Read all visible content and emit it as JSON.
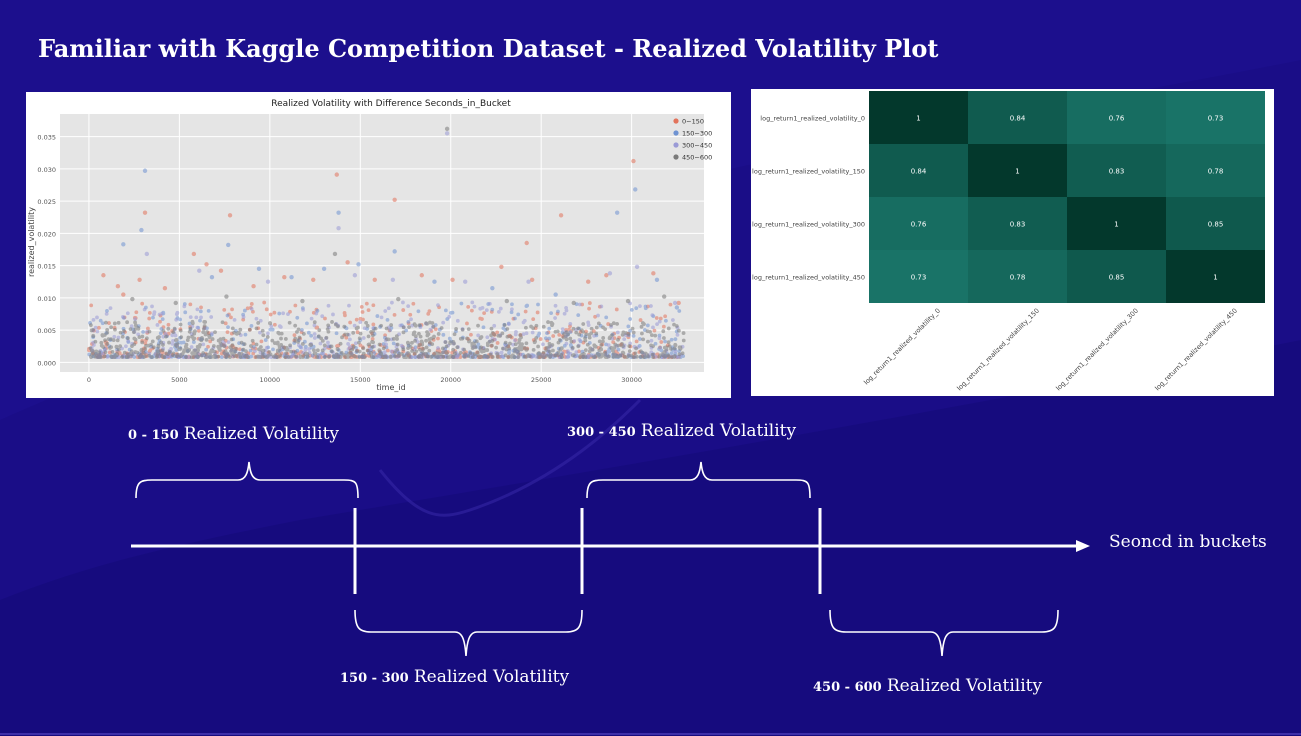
{
  "slide": {
    "title": "Familiar with Kaggle Competition Dataset - Realized Volatility  Plot",
    "timeline_axis_label": "Seoncd in buckets",
    "intervals": [
      {
        "range": "0 - 150",
        "label": "Realized Volatility"
      },
      {
        "range": "150 - 300",
        "label": "Realized Volatility"
      },
      {
        "range": "300 - 450",
        "label": "Realized Volatility"
      },
      {
        "range": "450 - 600",
        "label": "Realized Volatility"
      }
    ]
  },
  "chart_data": [
    {
      "type": "scatter",
      "title": "Realized Volatility with Difference Seconds_in_Bucket",
      "xlabel": "time_id",
      "ylabel": "realized_volatility",
      "xlim": [
        -1600,
        34000
      ],
      "ylim": [
        -0.0015,
        0.0385
      ],
      "xticks": [
        0,
        5000,
        10000,
        15000,
        20000,
        25000,
        30000
      ],
      "xtick_labels": [
        "0",
        "5000",
        "10000",
        "15000",
        "20000",
        "25000",
        "30000"
      ],
      "yticks": [
        0.0,
        0.005,
        0.01,
        0.015,
        0.02,
        0.025,
        0.03,
        0.035
      ],
      "ytick_labels": [
        "0.000",
        "0.005",
        "0.010",
        "0.015",
        "0.020",
        "0.025",
        "0.030",
        "0.035"
      ],
      "grid": true,
      "legend_position": "top-right",
      "series": [
        {
          "name": "0~150",
          "color": "#e2735c",
          "points": [
            [
              800,
              0.0135
            ],
            [
              1600,
              0.0118
            ],
            [
              1900,
              0.0105
            ],
            [
              2800,
              0.0128
            ],
            [
              3100,
              0.0232
            ],
            [
              4200,
              0.0115
            ],
            [
              5800,
              0.0168
            ],
            [
              6500,
              0.0152
            ],
            [
              7300,
              0.0142
            ],
            [
              7800,
              0.0228
            ],
            [
              9100,
              0.0118
            ],
            [
              10800,
              0.0132
            ],
            [
              12400,
              0.0128
            ],
            [
              13700,
              0.0291
            ],
            [
              14300,
              0.0155
            ],
            [
              15800,
              0.0128
            ],
            [
              16900,
              0.0252
            ],
            [
              18400,
              0.0135
            ],
            [
              20100,
              0.0128
            ],
            [
              22800,
              0.0148
            ],
            [
              24200,
              0.0185
            ],
            [
              24500,
              0.0128
            ],
            [
              26100,
              0.0228
            ],
            [
              27600,
              0.0125
            ],
            [
              28600,
              0.0135
            ],
            [
              30100,
              0.0312
            ],
            [
              31200,
              0.0138
            ],
            [
              32600,
              0.0092
            ]
          ]
        },
        {
          "name": "150~300",
          "color": "#6f93d2",
          "points": [
            [
              1900,
              0.0183
            ],
            [
              2900,
              0.0205
            ],
            [
              3100,
              0.0297
            ],
            [
              6800,
              0.0132
            ],
            [
              7700,
              0.0182
            ],
            [
              9400,
              0.0145
            ],
            [
              11200,
              0.0132
            ],
            [
              13000,
              0.0145
            ],
            [
              13800,
              0.0232
            ],
            [
              14900,
              0.0152
            ],
            [
              16900,
              0.0172
            ],
            [
              19100,
              0.0125
            ],
            [
              22300,
              0.0115
            ],
            [
              25800,
              0.0105
            ],
            [
              29200,
              0.0232
            ],
            [
              30200,
              0.0268
            ],
            [
              31400,
              0.0128
            ],
            [
              32500,
              0.0085
            ]
          ]
        },
        {
          "name": "300~450",
          "color": "#9a9ad6",
          "points": [
            [
              3200,
              0.0168
            ],
            [
              6100,
              0.0142
            ],
            [
              9900,
              0.0125
            ],
            [
              13800,
              0.0208
            ],
            [
              14700,
              0.0135
            ],
            [
              16800,
              0.0128
            ],
            [
              19800,
              0.0355
            ],
            [
              20800,
              0.0125
            ],
            [
              24300,
              0.0125
            ],
            [
              28800,
              0.0138
            ],
            [
              30300,
              0.0148
            ],
            [
              32400,
              0.0092
            ]
          ]
        },
        {
          "name": "450~600",
          "color": "#7a7a7a",
          "points": [
            [
              2400,
              0.0098
            ],
            [
              4800,
              0.0092
            ],
            [
              7600,
              0.0102
            ],
            [
              11800,
              0.0095
            ],
            [
              13600,
              0.0168
            ],
            [
              17100,
              0.0098
            ],
            [
              19800,
              0.0362
            ],
            [
              23100,
              0.0095
            ],
            [
              26800,
              0.0092
            ],
            [
              29800,
              0.0095
            ],
            [
              31800,
              0.0102
            ]
          ]
        }
      ]
    },
    {
      "type": "heatmap",
      "x_labels": [
        "log_return1_realized_volatility_0",
        "log_return1_realized_volatility_150",
        "log_return1_realized_volatility_300",
        "log_return1_realized_volatility_450"
      ],
      "y_labels": [
        "log_return1_realized_volatility_0",
        "log_return1_realized_volatility_150",
        "log_return1_realized_volatility_300",
        "log_return1_realized_volatility_450"
      ],
      "values": [
        [
          1,
          0.84,
          0.76,
          0.73
        ],
        [
          0.84,
          1,
          0.83,
          0.78
        ],
        [
          0.76,
          0.83,
          1,
          0.85
        ],
        [
          0.73,
          0.78,
          0.85,
          1
        ]
      ],
      "value_labels": [
        [
          "1",
          "0.84",
          "0.76",
          "0.73"
        ],
        [
          "0.84",
          "1",
          "0.83",
          "0.78"
        ],
        [
          "0.76",
          "0.83",
          "1",
          "0.85"
        ],
        [
          "0.73",
          "0.78",
          "0.85",
          "1"
        ]
      ],
      "colors": {
        "low": "#1c7a6e",
        "high": "#03382c"
      }
    }
  ]
}
